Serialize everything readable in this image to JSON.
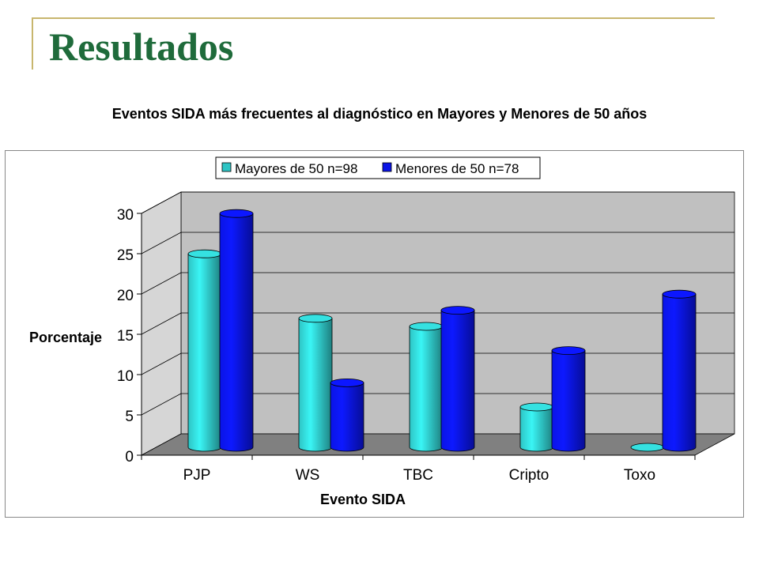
{
  "page": {
    "title": "Resultados",
    "subtitle": "Eventos SIDA más frecuentes al diagnóstico en Mayores y Menores de 50 años"
  },
  "colors": {
    "title": "#1f6b3b",
    "accent": "#c8b66e",
    "mayores": "#2ec4c4",
    "menores": "#0a14e6",
    "wall": "#c0c0c0",
    "floor": "#808080"
  },
  "chart_data": {
    "type": "bar",
    "title": "",
    "xlabel": "Evento SIDA",
    "ylabel": "Porcentaje",
    "categories": [
      "PJP",
      "WS",
      "TBC",
      "Cripto",
      "Toxo"
    ],
    "series": [
      {
        "name": "Mayores de 50 n=98",
        "values": [
          24,
          16,
          15,
          5,
          0
        ]
      },
      {
        "name": "Menores de 50 n=78",
        "values": [
          29,
          8,
          17,
          12,
          19
        ]
      }
    ],
    "ylim": [
      0,
      30
    ],
    "yticks": [
      "0",
      "5",
      "10",
      "15",
      "20",
      "25",
      "30"
    ],
    "grid": true,
    "legend_position": "top"
  }
}
